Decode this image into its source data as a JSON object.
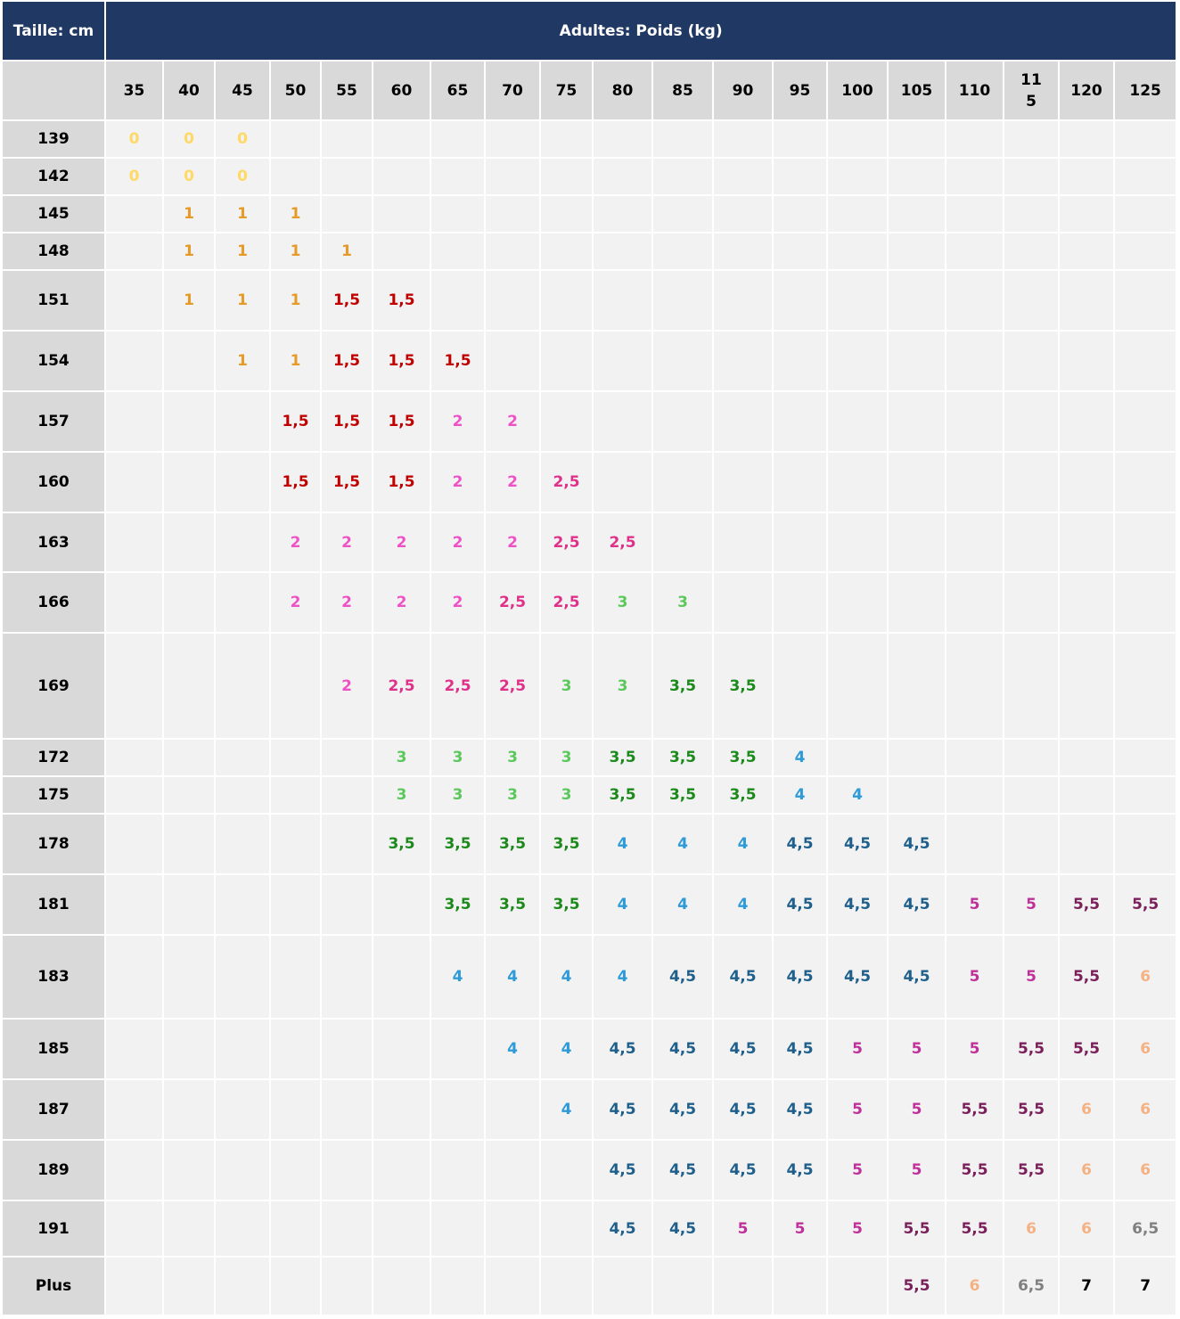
{
  "header": {
    "left": "Taille: cm",
    "title": "Adultes: Poids (kg)"
  },
  "columns": [
    "35",
    "40",
    "45",
    "50",
    "55",
    "60",
    "65",
    "70",
    "75",
    "80",
    "85",
    "90",
    "95",
    "100",
    "105",
    "110",
    "115",
    "120",
    "125"
  ],
  "colors": {
    "0": "#ffd966",
    "1": "#e69a28",
    "1,5": "#c00000",
    "2": "#ee52c6",
    "2,5": "#e0318a",
    "3": "#5cc85c",
    "3,5": "#1b8a1b",
    "4": "#2e9ad8",
    "4,5": "#1f5f8b",
    "5": "#c0309a",
    "5,5": "#7a1f5a",
    "6": "#f4b183",
    "6,5": "#808080",
    "7": "#000000"
  },
  "rows": [
    {
      "label": "139",
      "cells": [
        "0",
        "0",
        "0",
        null,
        null,
        null,
        null,
        null,
        null,
        null,
        null,
        null,
        null,
        null,
        null,
        null,
        null,
        null,
        null
      ]
    },
    {
      "label": "142",
      "cells": [
        "0",
        "0",
        "0",
        null,
        null,
        null,
        null,
        null,
        null,
        null,
        null,
        null,
        null,
        null,
        null,
        null,
        null,
        null,
        null
      ]
    },
    {
      "label": "145",
      "cells": [
        null,
        "1",
        "1",
        "1",
        null,
        null,
        null,
        null,
        null,
        null,
        null,
        null,
        null,
        null,
        null,
        null,
        null,
        null,
        null
      ]
    },
    {
      "label": "148",
      "cells": [
        null,
        "1",
        "1",
        "1",
        "1",
        null,
        null,
        null,
        null,
        null,
        null,
        null,
        null,
        null,
        null,
        null,
        null,
        null,
        null
      ]
    },
    {
      "label": "151",
      "cells": [
        null,
        "1",
        "1",
        "1",
        "1,5",
        "1,5",
        null,
        null,
        null,
        null,
        null,
        null,
        null,
        null,
        null,
        null,
        null,
        null,
        null
      ]
    },
    {
      "label": "154",
      "cells": [
        null,
        null,
        "1",
        "1",
        "1,5",
        "1,5",
        "1,5",
        null,
        null,
        null,
        null,
        null,
        null,
        null,
        null,
        null,
        null,
        null,
        null
      ]
    },
    {
      "label": "157",
      "cells": [
        null,
        null,
        null,
        "1,5",
        "1,5",
        "1,5",
        "2",
        "2",
        null,
        null,
        null,
        null,
        null,
        null,
        null,
        null,
        null,
        null,
        null
      ]
    },
    {
      "label": "160",
      "cells": [
        null,
        null,
        null,
        "1,5",
        "1,5",
        "1,5",
        "2",
        "2",
        "2,5",
        null,
        null,
        null,
        null,
        null,
        null,
        null,
        null,
        null,
        null
      ]
    },
    {
      "label": "163",
      "cells": [
        null,
        null,
        null,
        "2",
        "2",
        "2",
        "2",
        "2",
        "2,5",
        "2,5",
        null,
        null,
        null,
        null,
        null,
        null,
        null,
        null,
        null
      ]
    },
    {
      "label": "166",
      "cells": [
        null,
        null,
        null,
        "2",
        "2",
        "2",
        "2",
        "2,5",
        "2,5",
        "3",
        "3",
        null,
        null,
        null,
        null,
        null,
        null,
        null,
        null
      ]
    },
    {
      "label": "169",
      "cells": [
        null,
        null,
        null,
        null,
        "2",
        "2,5",
        "2,5",
        "2,5",
        "3",
        "3",
        "3,5",
        "3,5",
        null,
        null,
        null,
        null,
        null,
        null,
        null
      ]
    },
    {
      "label": "172",
      "cells": [
        null,
        null,
        null,
        null,
        null,
        "3",
        "3",
        "3",
        "3",
        "3,5",
        "3,5",
        "3,5",
        "4",
        null,
        null,
        null,
        null,
        null,
        null
      ]
    },
    {
      "label": "175",
      "cells": [
        null,
        null,
        null,
        null,
        null,
        "3",
        "3",
        "3",
        "3",
        "3,5",
        "3,5",
        "3,5",
        "4",
        "4",
        null,
        null,
        null,
        null,
        null
      ]
    },
    {
      "label": "178",
      "cells": [
        null,
        null,
        null,
        null,
        null,
        "3,5",
        "3,5",
        "3,5",
        "3,5",
        "4",
        "4",
        "4",
        "4,5",
        "4,5",
        "4,5",
        null,
        null,
        null,
        null
      ]
    },
    {
      "label": "181",
      "cells": [
        null,
        null,
        null,
        null,
        null,
        null,
        "3,5",
        "3,5",
        "3,5",
        "4",
        "4",
        "4",
        "4,5",
        "4,5",
        "4,5",
        "5",
        "5",
        "5,5",
        "5,5"
      ]
    },
    {
      "label": "183",
      "cells": [
        null,
        null,
        null,
        null,
        null,
        null,
        "4",
        "4",
        "4",
        "4",
        "4,5",
        "4,5",
        "4,5",
        "4,5",
        "4,5",
        "5",
        "5",
        "5,5",
        "6"
      ]
    },
    {
      "label": "185",
      "cells": [
        null,
        null,
        null,
        null,
        null,
        null,
        null,
        "4",
        "4",
        "4,5",
        "4,5",
        "4,5",
        "4,5",
        "5",
        "5",
        "5",
        "5,5",
        "5,5",
        "6"
      ]
    },
    {
      "label": "187",
      "cells": [
        null,
        null,
        null,
        null,
        null,
        null,
        null,
        null,
        "4",
        "4,5",
        "4,5",
        "4,5",
        "4,5",
        "5",
        "5",
        "5,5",
        "5,5",
        "6",
        "6"
      ]
    },
    {
      "label": "189",
      "cells": [
        null,
        null,
        null,
        null,
        null,
        null,
        null,
        null,
        null,
        "4,5",
        "4,5",
        "4,5",
        "4,5",
        "5",
        "5",
        "5,5",
        "5,5",
        "6",
        "6"
      ]
    },
    {
      "label": "191",
      "cells": [
        null,
        null,
        null,
        null,
        null,
        null,
        null,
        null,
        null,
        "4,5",
        "4,5",
        "5",
        "5",
        "5",
        "5,5",
        "5,5",
        "6",
        "6",
        "6,5"
      ]
    },
    {
      "label": "Plus",
      "cells": [
        null,
        null,
        null,
        null,
        null,
        null,
        null,
        null,
        null,
        null,
        null,
        null,
        null,
        null,
        "5,5",
        "6",
        "6,5",
        "7",
        "7"
      ]
    }
  ]
}
